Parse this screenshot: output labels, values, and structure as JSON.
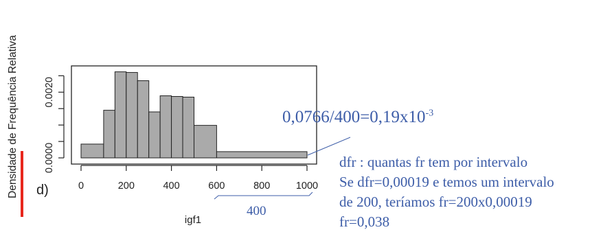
{
  "chart_data": {
    "type": "bar",
    "subtype": "histogram",
    "panel_label": "d)",
    "xlabel": "igf1",
    "ylabel": "Densidade de Frequência Relativa",
    "bins": [
      {
        "start": 0,
        "end": 100,
        "density": 0.00042
      },
      {
        "start": 100,
        "end": 150,
        "density": 0.00145
      },
      {
        "start": 150,
        "end": 200,
        "density": 0.00262
      },
      {
        "start": 200,
        "end": 250,
        "density": 0.0026
      },
      {
        "start": 250,
        "end": 300,
        "density": 0.00235
      },
      {
        "start": 300,
        "end": 350,
        "density": 0.0014
      },
      {
        "start": 350,
        "end": 400,
        "density": 0.00189
      },
      {
        "start": 400,
        "end": 450,
        "density": 0.00187
      },
      {
        "start": 450,
        "end": 500,
        "density": 0.00185
      },
      {
        "start": 500,
        "end": 600,
        "density": 0.00099
      },
      {
        "start": 600,
        "end": 1000,
        "density": 0.00019
      }
    ],
    "xlim": [
      0,
      1000
    ],
    "ylim": [
      0,
      0.0028
    ],
    "x_ticks": [
      0,
      200,
      400,
      600,
      800,
      1000
    ],
    "x_tick_labels": [
      "0",
      "200",
      "400",
      "600",
      "800",
      "1000"
    ],
    "y_ticks": [
      0,
      0.0005,
      0.001,
      0.0015,
      0.002,
      0.0025
    ],
    "y_tick_labels": [
      "0.0000",
      "",
      "",
      "",
      "0.0020",
      ""
    ],
    "bar_color": "#aaaaaa",
    "grid": false,
    "legend": "none"
  },
  "annotations": {
    "formula_base": "0,0766/400=0,19x10",
    "formula_exp": "-3",
    "width_label": "400",
    "notes": [
      "dfr : quantas fr tem por intervalo",
      "Se dfr=0,00019 e temos um intervalo",
      "de 200, teríamos fr=200x0,00019",
      "fr=0,038"
    ],
    "annotation_color": "#3d5da8",
    "highlight_color": "#e8271d"
  }
}
